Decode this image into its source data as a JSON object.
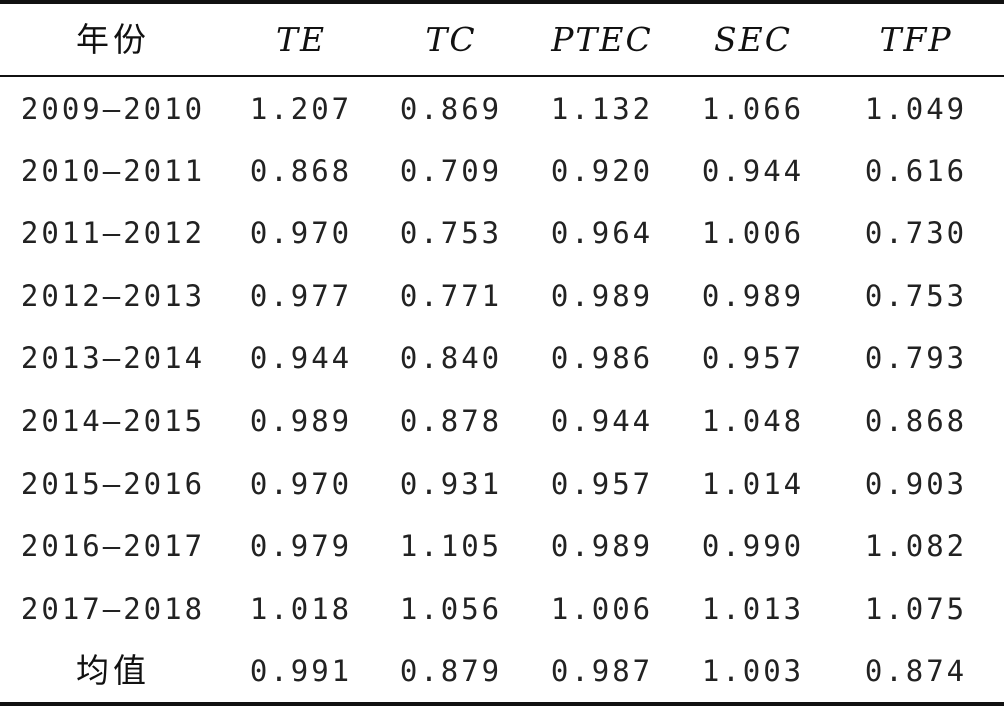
{
  "table": {
    "headers": [
      "年份",
      "TE",
      "TC",
      "PTEC",
      "SEC",
      "TFP"
    ],
    "rows": [
      [
        "2009—2010",
        "1.207",
        "0.869",
        "1.132",
        "1.066",
        "1.049"
      ],
      [
        "2010—2011",
        "0.868",
        "0.709",
        "0.920",
        "0.944",
        "0.616"
      ],
      [
        "2011—2012",
        "0.970",
        "0.753",
        "0.964",
        "1.006",
        "0.730"
      ],
      [
        "2012—2013",
        "0.977",
        "0.771",
        "0.989",
        "0.989",
        "0.753"
      ],
      [
        "2013—2014",
        "0.944",
        "0.840",
        "0.986",
        "0.957",
        "0.793"
      ],
      [
        "2014—2015",
        "0.989",
        "0.878",
        "0.944",
        "1.048",
        "0.868"
      ],
      [
        "2015—2016",
        "0.970",
        "0.931",
        "0.957",
        "1.014",
        "0.903"
      ],
      [
        "2016—2017",
        "0.979",
        "1.105",
        "0.989",
        "0.990",
        "1.082"
      ],
      [
        "2017—2018",
        "1.018",
        "1.056",
        "1.006",
        "1.013",
        "1.075"
      ],
      [
        "均值",
        "0.991",
        "0.879",
        "0.987",
        "1.003",
        "0.874"
      ]
    ]
  }
}
